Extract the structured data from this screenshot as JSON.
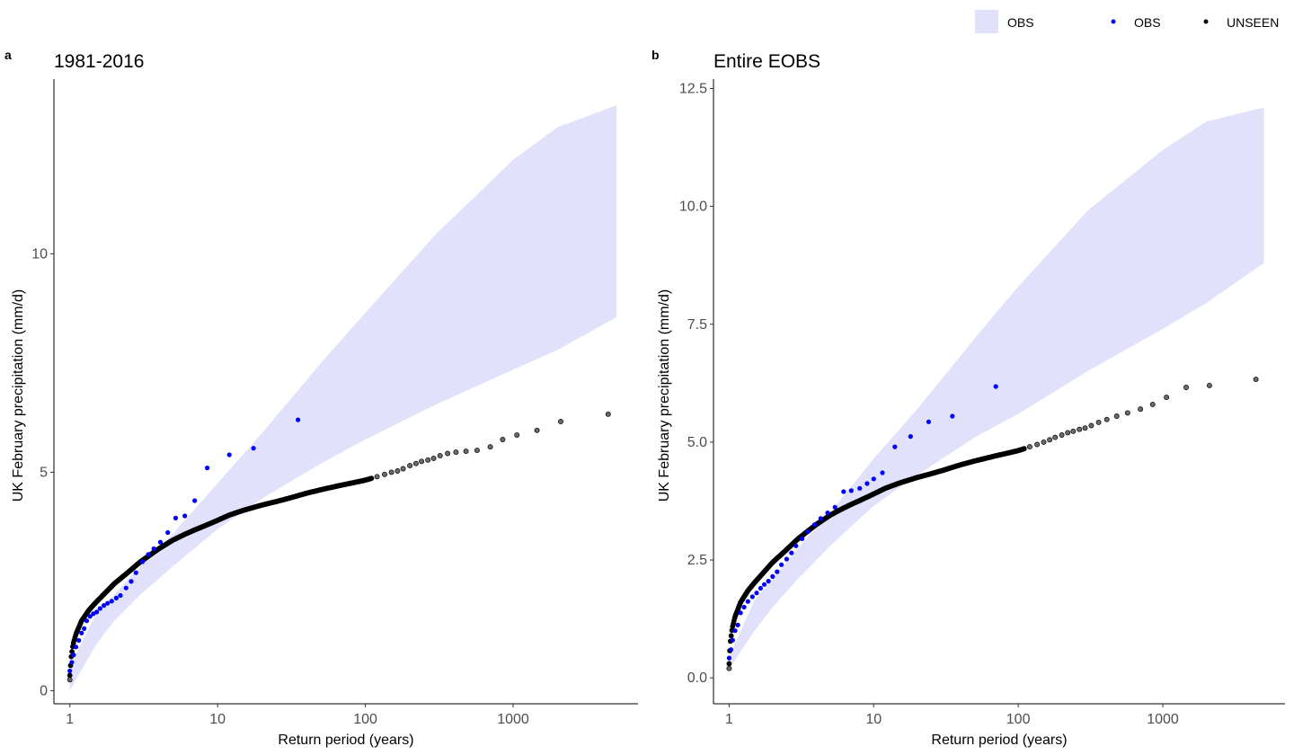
{
  "legend": {
    "items": [
      {
        "label": "OBS",
        "kind": "band",
        "color": "#e1e1fb"
      },
      {
        "label": "OBS",
        "kind": "point",
        "color": "#0000ff"
      },
      {
        "label": "UNSEEN",
        "kind": "point",
        "color": "#000000"
      }
    ]
  },
  "colors": {
    "band": "#e1e1fb",
    "obs": "#0000ff",
    "unseen_fill": "#6b6b6b",
    "unseen_stroke": "#000000",
    "axis": "#000000"
  },
  "chart_data": [
    {
      "type": "scatter",
      "tag": "a",
      "title": "1981-2016",
      "xlabel": "Return period (years)",
      "ylabel": "UK February precipitation (mm/d)",
      "xscale": "log",
      "xlim": [
        0.78,
        7000
      ],
      "ylim": [
        -0.3,
        14.0
      ],
      "xticks": [
        1,
        10,
        100,
        1000
      ],
      "xtick_labels": [
        "1",
        "10",
        "100",
        "1000"
      ],
      "yticks": [
        0,
        5,
        10
      ],
      "ytick_labels": [
        "0",
        "5",
        "10"
      ],
      "grid": false,
      "unseen_curve": {
        "x": [
          1.0,
          1.01,
          1.02,
          1.05,
          1.1,
          1.2,
          1.35,
          1.5,
          1.75,
          2.0,
          2.5,
          3.0,
          4.0,
          5.0,
          6.0,
          7.0,
          8.0,
          10.0,
          12.0,
          15.0,
          20.0,
          25.0,
          30.0,
          40.0,
          50.0,
          60.0,
          70.0,
          80.0,
          100.0,
          110.0
        ],
        "y": [
          0.35,
          0.55,
          0.75,
          1.05,
          1.3,
          1.6,
          1.85,
          2.02,
          2.25,
          2.45,
          2.72,
          2.95,
          3.25,
          3.45,
          3.58,
          3.68,
          3.76,
          3.9,
          4.02,
          4.13,
          4.25,
          4.33,
          4.4,
          4.52,
          4.6,
          4.66,
          4.71,
          4.75,
          4.82,
          4.86
        ]
      },
      "unseen_tail": {
        "x": [
          120,
          135,
          150,
          165,
          180,
          200,
          220,
          240,
          265,
          290,
          320,
          360,
          410,
          480,
          570,
          700,
          850,
          1060,
          1450,
          2100,
          4400
        ],
        "y": [
          4.9,
          4.95,
          5.0,
          5.03,
          5.08,
          5.15,
          5.2,
          5.25,
          5.28,
          5.32,
          5.38,
          5.43,
          5.46,
          5.48,
          5.5,
          5.58,
          5.75,
          5.85,
          5.96,
          6.16,
          6.33
        ]
      },
      "obs_points": {
        "x": [
          1.0,
          1.03,
          1.06,
          1.1,
          1.15,
          1.2,
          1.25,
          1.3,
          1.37,
          1.44,
          1.52,
          1.6,
          1.7,
          1.8,
          1.92,
          2.06,
          2.2,
          2.4,
          2.6,
          2.8,
          3.1,
          3.4,
          3.7,
          4.1,
          4.6,
          5.2,
          6.0,
          7.0,
          8.5,
          12.0,
          17.5,
          35.0
        ],
        "y": [
          0.45,
          0.65,
          0.82,
          1.0,
          1.15,
          1.32,
          1.42,
          1.6,
          1.7,
          1.76,
          1.8,
          1.88,
          1.95,
          2.0,
          2.05,
          2.12,
          2.18,
          2.35,
          2.5,
          2.7,
          2.95,
          3.12,
          3.25,
          3.4,
          3.62,
          3.95,
          4.0,
          4.35,
          5.1,
          5.4,
          5.55,
          6.2
        ]
      },
      "band": {
        "x": [
          1.0,
          1.5,
          2,
          3,
          5,
          10,
          20,
          50,
          100,
          300,
          1000,
          2000,
          5000
        ],
        "lower": [
          0.0,
          1.05,
          1.6,
          2.2,
          2.85,
          3.7,
          4.4,
          5.2,
          5.75,
          6.55,
          7.35,
          7.8,
          8.55
        ],
        "upper": [
          0.55,
          1.75,
          2.2,
          2.85,
          3.6,
          4.75,
          5.9,
          7.5,
          8.65,
          10.45,
          12.15,
          12.9,
          13.4
        ]
      }
    },
    {
      "type": "scatter",
      "tag": "b",
      "title": "Entire EOBS",
      "xlabel": "Return period (years)",
      "ylabel": "UK February precipitation (mm/d)",
      "xscale": "log",
      "xlim": [
        0.78,
        7000
      ],
      "ylim": [
        -0.55,
        12.7
      ],
      "xticks": [
        1,
        10,
        100,
        1000
      ],
      "xtick_labels": [
        "1",
        "10",
        "100",
        "1000"
      ],
      "yticks": [
        0.0,
        2.5,
        5.0,
        7.5,
        10.0,
        12.5
      ],
      "ytick_labels": [
        "0.0",
        "2.5",
        "5.0",
        "7.5",
        "10.0",
        "12.5"
      ],
      "grid": false,
      "unseen_curve": {
        "x": [
          1.0,
          1.01,
          1.02,
          1.05,
          1.1,
          1.2,
          1.35,
          1.5,
          1.75,
          2.0,
          2.5,
          3.0,
          4.0,
          5.0,
          6.0,
          7.0,
          8.0,
          10.0,
          12.0,
          15.0,
          20.0,
          25.0,
          30.0,
          40.0,
          50.0,
          60.0,
          70.0,
          80.0,
          100.0,
          110.0
        ],
        "y": [
          0.3,
          0.55,
          0.75,
          1.05,
          1.3,
          1.6,
          1.85,
          2.02,
          2.25,
          2.45,
          2.72,
          2.95,
          3.25,
          3.45,
          3.58,
          3.68,
          3.76,
          3.9,
          4.02,
          4.13,
          4.25,
          4.33,
          4.4,
          4.52,
          4.6,
          4.66,
          4.71,
          4.75,
          4.82,
          4.86
        ]
      },
      "unseen_tail": {
        "x": [
          120,
          135,
          150,
          165,
          180,
          200,
          220,
          240,
          265,
          290,
          320,
          360,
          410,
          480,
          570,
          700,
          850,
          1060,
          1450,
          2100,
          4400
        ],
        "y": [
          4.9,
          4.95,
          5.0,
          5.05,
          5.1,
          5.15,
          5.2,
          5.23,
          5.27,
          5.3,
          5.35,
          5.42,
          5.48,
          5.55,
          5.62,
          5.7,
          5.8,
          5.95,
          6.16,
          6.2,
          6.33
        ]
      },
      "obs_points": {
        "x": [
          1.0,
          1.03,
          1.06,
          1.1,
          1.15,
          1.2,
          1.27,
          1.35,
          1.45,
          1.55,
          1.65,
          1.75,
          1.87,
          2.0,
          2.15,
          2.3,
          2.5,
          2.7,
          2.9,
          3.2,
          3.5,
          3.9,
          4.3,
          4.8,
          5.4,
          6.2,
          7.0,
          8.0,
          9.0,
          10.0,
          11.5,
          14.0,
          18.0,
          24.0,
          35.0,
          70.0
        ],
        "y": [
          0.42,
          0.6,
          0.8,
          1.0,
          1.12,
          1.38,
          1.5,
          1.62,
          1.72,
          1.8,
          1.9,
          1.98,
          2.05,
          2.15,
          2.25,
          2.4,
          2.52,
          2.65,
          2.8,
          2.95,
          3.1,
          3.25,
          3.38,
          3.5,
          3.62,
          3.95,
          3.97,
          4.02,
          4.12,
          4.22,
          4.35,
          4.9,
          5.12,
          5.43,
          5.55,
          6.18
        ]
      },
      "band": {
        "x": [
          1.0,
          1.5,
          2,
          3,
          5,
          10,
          20,
          50,
          100,
          300,
          1000,
          2000,
          5000
        ],
        "lower": [
          0.2,
          1.0,
          1.5,
          2.1,
          2.8,
          3.65,
          4.3,
          5.1,
          5.6,
          6.5,
          7.4,
          7.95,
          8.8
        ],
        "upper": [
          0.45,
          1.65,
          2.1,
          2.75,
          3.5,
          4.65,
          5.7,
          7.2,
          8.3,
          9.9,
          11.2,
          11.8,
          12.1
        ]
      }
    }
  ]
}
